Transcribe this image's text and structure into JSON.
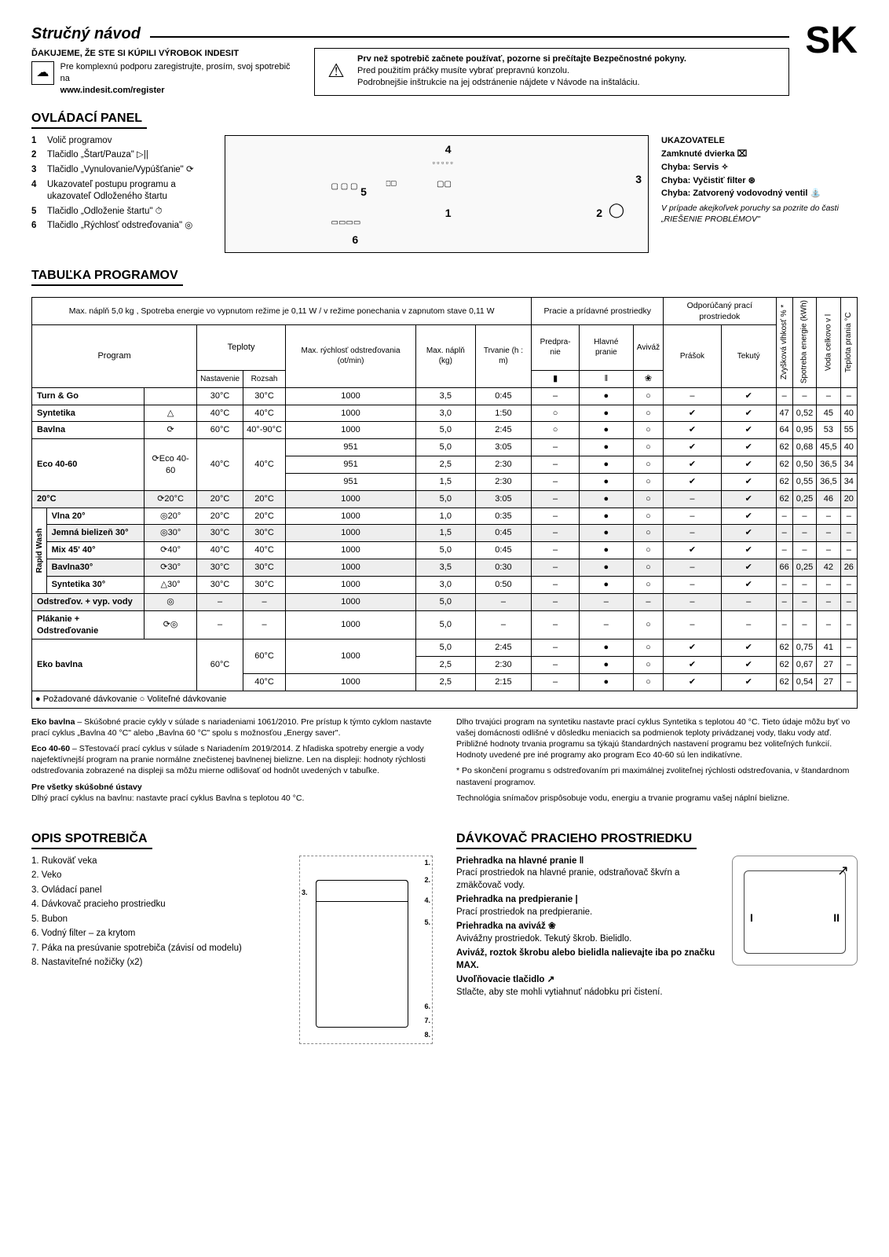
{
  "lang_code": "SK",
  "title": "Stručný návod",
  "thanks": "ĎAKUJEME, ŽE STE SI KÚPILI VÝROBOK INDESIT",
  "register_text": "Pre komplexnú podporu zaregistrujte, prosím, svoj spotrebič na",
  "register_url": "www.indesit.com/register",
  "warning_bold": "Prv než spotrebič začnete používať, pozorne si prečítajte Bezpečnostné pokyny.",
  "warning_line2": "Pred použitím práčky musíte vybrať prepravnú konzolu.",
  "warning_line3": "Podrobnejšie inštrukcie na jej odstránenie nájdete v Návode na inštaláciu.",
  "section_panel": "OVLÁDACÍ PANEL",
  "panel_items": [
    {
      "n": "1",
      "t": "Volič programov"
    },
    {
      "n": "2",
      "t": "Tlačidlo „Štart/Pauza\" ▷||"
    },
    {
      "n": "3",
      "t": "Tlačidlo „Vynulovanie/Vypúšťanie\" ⟳"
    },
    {
      "n": "4",
      "t": "Ukazovateľ postupu programu a ukazovateľ Odloženého štartu"
    },
    {
      "n": "5",
      "t": "Tlačidlo „Odloženie štartu\" ⏱"
    },
    {
      "n": "6",
      "t": "Tlačidlo „Rýchlosť odstreďovania\" ◎"
    }
  ],
  "indicators_title": "UKAZOVATELE",
  "indicators": [
    "Zamknuté dvierka ⌧",
    "Chyba: Servis ✧",
    "Chyba: Vyčistiť filter ⊛",
    "Chyba: Zatvorený vodovodný ventil ⛲"
  ],
  "indicators_note": "V prípade akejkoľvek poruchy sa pozrite do časti „RIEŠENIE PROBLÉMOV\"",
  "section_table": "TABUĽKA PROGRAMOV",
  "table_caption": "Max. náplň 5,0 kg , Spotreba energie vo vypnutom režime je 0,11 W / v režime ponechania v zapnutom stave 0,11 W",
  "head_program": "Program",
  "head_temp": "Teploty",
  "head_temp_set": "Nastavenie",
  "head_temp_range": "Rozsah",
  "head_maxspin": "Max. rýchlosť odstreďovania (ot/min)",
  "head_maxload": "Max. náplň (kg)",
  "head_duration": "Trvanie (h : m)",
  "head_wash_group": "Pracie a prídavné prostriedky",
  "head_prewash": "Predpra-nie",
  "head_main": "Hlavné pranie",
  "head_soft": "Aviváž",
  "head_detergent_group": "Odporúčaný prací prostriedok",
  "head_powder": "Prášok",
  "head_liquid": "Tekutý",
  "head_humidity": "Zvyšková vlhkosť % *",
  "head_energy": "Spotreba energie (kWh)",
  "head_water": "Voda celkovo v l",
  "head_washtemp": "Teplota prania °C",
  "legend": "● Požadované dávkovanie  ○ Voliteľné dávkovanie",
  "programs": [
    {
      "name": "Turn & Go",
      "icon": "",
      "set": "30°C",
      "range": "30°C",
      "spin": "1000",
      "load": "3,5",
      "dur": "0:45",
      "pre": "–",
      "main": "●",
      "soft": "○",
      "pw": "–",
      "lq": "✔",
      "rh": "–",
      "en": "–",
      "wt": "–",
      "tp": "–"
    },
    {
      "name": "Syntetika",
      "icon": "△",
      "set": "40°C",
      "range": "40°C",
      "spin": "1000",
      "load": "3,0",
      "dur": "1:50",
      "pre": "○",
      "main": "●",
      "soft": "○",
      "pw": "✔",
      "lq": "✔",
      "rh": "47",
      "en": "0,52",
      "wt": "45",
      "tp": "40"
    },
    {
      "name": "Bavlna",
      "icon": "⟳",
      "set": "60°C",
      "range": "40°-90°C",
      "spin": "1000",
      "load": "5,0",
      "dur": "2:45",
      "pre": "○",
      "main": "●",
      "soft": "○",
      "pw": "✔",
      "lq": "✔",
      "rh": "64",
      "en": "0,95",
      "wt": "53",
      "tp": "55"
    },
    {
      "name": "Eco 40-60",
      "icon": "⟳Eco 40-60",
      "rowspan": 3,
      "set": "40°C",
      "range": "40°C",
      "rows": [
        {
          "spin": "951",
          "load": "5,0",
          "dur": "3:05",
          "pre": "–",
          "main": "●",
          "soft": "○",
          "pw": "✔",
          "lq": "✔",
          "rh": "62",
          "en": "0,68",
          "wt": "45,5",
          "tp": "40"
        },
        {
          "spin": "951",
          "load": "2,5",
          "dur": "2:30",
          "pre": "–",
          "main": "●",
          "soft": "○",
          "pw": "✔",
          "lq": "✔",
          "rh": "62",
          "en": "0,50",
          "wt": "36,5",
          "tp": "34"
        },
        {
          "spin": "951",
          "load": "1,5",
          "dur": "2:30",
          "pre": "–",
          "main": "●",
          "soft": "○",
          "pw": "✔",
          "lq": "✔",
          "rh": "62",
          "en": "0,55",
          "wt": "36,5",
          "tp": "34"
        }
      ]
    },
    {
      "name": "20°C",
      "icon": "⟳20°C",
      "set": "20°C",
      "range": "20°C",
      "spin": "1000",
      "load": "5,0",
      "dur": "3:05",
      "pre": "–",
      "main": "●",
      "soft": "○",
      "pw": "–",
      "lq": "✔",
      "rh": "62",
      "en": "0,25",
      "wt": "46",
      "tp": "20",
      "shade": true
    },
    {
      "group": "Rapid Wash",
      "name": "Vlna 20°",
      "icon": "◎20°",
      "set": "20°C",
      "range": "20°C",
      "spin": "1000",
      "load": "1,0",
      "dur": "0:35",
      "pre": "–",
      "main": "●",
      "soft": "○",
      "pw": "–",
      "lq": "✔",
      "rh": "–",
      "en": "–",
      "wt": "–",
      "tp": "–"
    },
    {
      "group": "Rapid Wash",
      "name": "Jemná bielizeň 30°",
      "icon": "◎30°",
      "set": "30°C",
      "range": "30°C",
      "spin": "1000",
      "load": "1,5",
      "dur": "0:45",
      "pre": "–",
      "main": "●",
      "soft": "○",
      "pw": "–",
      "lq": "✔",
      "rh": "–",
      "en": "–",
      "wt": "–",
      "tp": "–",
      "shade": true
    },
    {
      "group": "Rapid Wash",
      "name": "Mix 45' 40°",
      "icon": "⟳40°",
      "set": "40°C",
      "range": "40°C",
      "spin": "1000",
      "load": "5,0",
      "dur": "0:45",
      "pre": "–",
      "main": "●",
      "soft": "○",
      "pw": "✔",
      "lq": "✔",
      "rh": "–",
      "en": "–",
      "wt": "–",
      "tp": "–"
    },
    {
      "group": "Rapid Wash",
      "name": "Bavlna30°",
      "icon": "⟳30°",
      "set": "30°C",
      "range": "30°C",
      "spin": "1000",
      "load": "3,5",
      "dur": "0:30",
      "pre": "–",
      "main": "●",
      "soft": "○",
      "pw": "–",
      "lq": "✔",
      "rh": "66",
      "en": "0,25",
      "wt": "42",
      "tp": "26",
      "shade": true
    },
    {
      "group": "Rapid Wash",
      "name": "Syntetika 30°",
      "icon": "△30°",
      "set": "30°C",
      "range": "30°C",
      "spin": "1000",
      "load": "3,0",
      "dur": "0:50",
      "pre": "–",
      "main": "●",
      "soft": "○",
      "pw": "–",
      "lq": "✔",
      "rh": "–",
      "en": "–",
      "wt": "–",
      "tp": "–"
    },
    {
      "name": "Odstreďov. + vyp. vody",
      "icon": "◎",
      "set": "–",
      "range": "–",
      "spin": "1000",
      "load": "5,0",
      "dur": "–",
      "pre": "–",
      "main": "–",
      "soft": "–",
      "pw": "–",
      "lq": "–",
      "rh": "–",
      "en": "–",
      "wt": "–",
      "tp": "–",
      "shade": true
    },
    {
      "name": "Plákanie + Odstreďovanie",
      "icon": "⟳◎",
      "set": "–",
      "range": "–",
      "spin": "1000",
      "load": "5,0",
      "dur": "–",
      "pre": "–",
      "main": "–",
      "soft": "○",
      "pw": "–",
      "lq": "–",
      "rh": "–",
      "en": "–",
      "wt": "–",
      "tp": "–"
    },
    {
      "name": "Eko bavlna",
      "icon": "",
      "rowspan": 3,
      "set": "60°C",
      "rows2": [
        {
          "range": "60°C",
          "spin": "1000",
          "load": "5,0",
          "dur": "2:45",
          "pre": "–",
          "main": "●",
          "soft": "○",
          "pw": "✔",
          "lq": "✔",
          "rh": "62",
          "en": "0,75",
          "wt": "41",
          "tp": "–"
        },
        {
          "range": "",
          "spin": "",
          "load": "2,5",
          "dur": "2:30",
          "pre": "–",
          "main": "●",
          "soft": "○",
          "pw": "✔",
          "lq": "✔",
          "rh": "62",
          "en": "0,67",
          "wt": "27",
          "tp": "–"
        },
        {
          "range": "40°C",
          "spin": "1000",
          "load": "2,5",
          "dur": "2:15",
          "pre": "–",
          "main": "●",
          "soft": "○",
          "pw": "✔",
          "lq": "✔",
          "rh": "62",
          "en": "0,54",
          "wt": "27",
          "tp": "–"
        }
      ]
    }
  ],
  "notes_left": [
    {
      "b": "Eko bavlna",
      "t": " – Skúšobné pracie cykly v súlade s nariadeniami 1061/2010. Pre prístup k týmto cyklom nastavte prací cyklus „Bavlna 40 °C\" alebo „Bavlna 60 °C\" spolu s možnosťou „Energy saver\"."
    },
    {
      "b": "Eco 40-60",
      "t": " – STestovaćí prací cyklus v súlade s Nariadením 2019/2014. Z hľadiska spotreby energie a vody najefektívnejší program na pranie normálne znečistenej bavlnenej bielizne. Len na displeji: hodnoty rýchlosti odstreďovania zobrazené na displeji sa môžu mierne odlišovať od hodnôt uvedených v tabuľke."
    },
    {
      "b": "Pre všetky skúšobné ústavy",
      "t": "\nDlhý prací cyklus na bavlnu: nastavte prací cyklus Bavlna s teplotou 40 °C."
    }
  ],
  "notes_right": [
    "Dlho trvajúci program na syntetiku nastavte prací cyklus Syntetika s teplotou 40 °C.\nTieto údaje môžu byť vo vašej domácnosti odlišné v dôsledku meniacich sa podmienok teploty privádzanej vody, tlaku vody atď. Približné hodnoty trvania programu sa týkajú štandardných nastavení programu bez voliteľných funkcií. Hodnoty uvedené pre iné programy ako program Eco 40-60 sú len indikatívne.",
    "* Po skončení programu s odstreďovaním pri maximálnej zvoliteľnej rýchlosti odstreďovania, v štandardnom nastavení programov.",
    "Technológia snímačov prispôsobuje vodu, energiu a trvanie programu vašej náplní bielizne."
  ],
  "section_opis": "OPIS SPOTREBIČA",
  "opis_items": [
    "Rukoväť veka",
    "Veko",
    "Ovládací panel",
    "Dávkovač pracieho prostriedku",
    "Bubon",
    "Vodný filter – za krytom",
    "Páka na presúvanie spotrebiča (závisí od modelu)",
    "Nastaviteľné nožičky (x2)"
  ],
  "section_davk": "DÁVKOVAČ PRACIEHO PROSTRIEDKU",
  "davk_blocks": [
    {
      "h": "Priehradka na hlavné pranie ‖",
      "t": "Prací prostriedok na hlavné pranie, odstraňovač škvŕn a zmäkčovač vody."
    },
    {
      "h": "Priehradka na predpieranie |",
      "t": "Prací prostriedok na predpieranie."
    },
    {
      "h": "Priehradka na aviváž ❀",
      "t": "Avivážny prostriedok. Tekutý škrob. Bielidlo."
    },
    {
      "h": "Aviváž, roztok škrobu alebo bielidla nalievajte iba po značku MAX.",
      "t": ""
    },
    {
      "h": "Uvoľňovacie tlačidlo ↗",
      "t": "Stlačte, aby ste mohli vytiahnuť nádobku pri čistení."
    }
  ]
}
